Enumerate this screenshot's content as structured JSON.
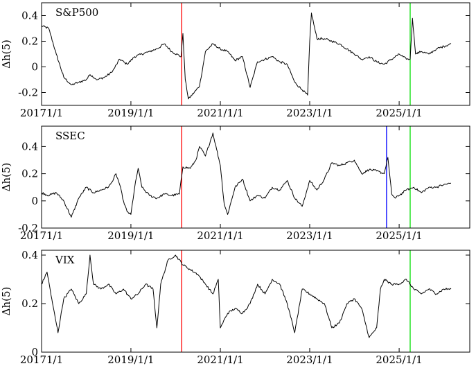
{
  "chart_data": [
    {
      "type": "line",
      "title": "S&P500",
      "ylabel": "Δh(5)",
      "xlabel": "",
      "xlim": [
        "2017-01-01",
        "2026-08-01"
      ],
      "ylim": [
        -0.3,
        0.5
      ],
      "yticks": [
        -0.2,
        0,
        0.2,
        0.4
      ],
      "ytick_labels": [
        "-0.2",
        "0",
        "0.2",
        "0.4"
      ],
      "xticks": [
        "2017-01-01",
        "2019-01-01",
        "2021-01-01",
        "2023-01-01",
        "2025-01-01"
      ],
      "xtick_labels": [
        "20171/1",
        "2019/1/1",
        "2021/1/1",
        "2023/1/1",
        "2025/1/1"
      ],
      "vlines": [
        {
          "date": "2020-02-20",
          "color": "#ff0000"
        },
        {
          "date": "2025-04-01",
          "color": "#00dd00"
        }
      ],
      "series": [
        {
          "x": [
            "2017-01-01",
            "2017-03-01",
            "2017-05-01",
            "2017-07-01",
            "2017-09-01",
            "2017-11-01",
            "2018-01-01",
            "2018-02-01",
            "2018-04-01",
            "2018-06-01",
            "2018-08-01",
            "2018-10-01",
            "2018-12-01",
            "2019-02-01",
            "2019-04-01",
            "2019-06-01",
            "2019-08-01",
            "2019-10-01",
            "2019-12-01",
            "2020-02-15",
            "2020-03-01",
            "2020-03-20",
            "2020-04-15",
            "2020-06-01",
            "2020-07-15",
            "2020-09-01",
            "2020-11-01",
            "2021-01-01",
            "2021-03-01",
            "2021-05-01",
            "2021-07-01",
            "2021-09-01",
            "2021-11-01",
            "2022-01-01",
            "2022-03-01",
            "2022-05-01",
            "2022-07-01",
            "2022-09-01",
            "2022-11-01",
            "2022-12-15",
            "2023-01-01",
            "2023-01-15",
            "2023-03-01",
            "2023-05-01",
            "2023-07-01",
            "2023-09-01",
            "2023-11-01",
            "2024-01-01",
            "2024-03-01",
            "2024-05-01",
            "2024-07-01",
            "2024-09-01",
            "2024-11-01",
            "2025-01-01",
            "2025-03-01",
            "2025-04-01",
            "2025-04-20",
            "2025-05-15",
            "2025-07-01",
            "2025-09-01",
            "2025-11-01",
            "2026-01-01",
            "2026-03-01"
          ],
          "values": [
            0.32,
            0.3,
            0.1,
            -0.08,
            -0.14,
            -0.12,
            -0.1,
            -0.06,
            -0.1,
            -0.08,
            -0.04,
            0.06,
            0.02,
            0.08,
            0.1,
            0.12,
            0.14,
            0.18,
            0.12,
            0.08,
            0.26,
            -0.1,
            -0.25,
            -0.2,
            -0.15,
            0.12,
            0.18,
            0.14,
            0.12,
            0.05,
            0.08,
            -0.16,
            0.04,
            0.06,
            0.08,
            0.04,
            0.02,
            -0.12,
            -0.18,
            -0.22,
            0.2,
            0.42,
            0.22,
            0.22,
            0.2,
            0.18,
            0.14,
            0.1,
            0.06,
            0.08,
            0.04,
            0.02,
            0.06,
            0.1,
            0.06,
            0.06,
            0.38,
            0.1,
            0.12,
            0.1,
            0.14,
            0.16,
            0.18
          ]
        }
      ]
    },
    {
      "type": "line",
      "title": "SSEC",
      "ylabel": "Δh(5)",
      "xlabel": "",
      "xlim": [
        "2017-01-01",
        "2026-08-01"
      ],
      "ylim": [
        -0.2,
        0.55
      ],
      "yticks": [
        -0.2,
        0,
        0.2,
        0.4
      ],
      "ytick_labels": [
        "-0.2",
        "0",
        "0.2",
        "0.4"
      ],
      "xticks": [
        "2017-01-01",
        "2019-01-01",
        "2021-01-01",
        "2023-01-01",
        "2025-01-01"
      ],
      "xtick_labels": [
        "20171/1",
        "2019/1/1",
        "2021/1/1",
        "2023/1/1",
        "2025/1/1"
      ],
      "vlines": [
        {
          "date": "2020-02-20",
          "color": "#ff0000"
        },
        {
          "date": "2024-09-20",
          "color": "#0000ff"
        },
        {
          "date": "2025-04-01",
          "color": "#00dd00"
        }
      ],
      "series": [
        {
          "x": [
            "2017-01-01",
            "2017-03-01",
            "2017-05-01",
            "2017-07-01",
            "2017-09-01",
            "2017-11-01",
            "2018-01-01",
            "2018-03-01",
            "2018-05-01",
            "2018-07-01",
            "2018-08-01",
            "2018-09-01",
            "2018-10-01",
            "2018-11-01",
            "2018-12-01",
            "2019-01-01",
            "2019-02-01",
            "2019-03-01",
            "2019-04-01",
            "2019-06-01",
            "2019-08-01",
            "2019-10-01",
            "2019-12-01",
            "2020-02-01",
            "2020-03-01",
            "2020-05-01",
            "2020-06-15",
            "2020-07-15",
            "2020-09-01",
            "2020-11-01",
            "2020-12-01",
            "2021-01-01",
            "2021-02-01",
            "2021-03-01",
            "2021-05-01",
            "2021-07-01",
            "2021-09-01",
            "2021-11-01",
            "2022-01-01",
            "2022-03-01",
            "2022-05-01",
            "2022-07-01",
            "2022-09-01",
            "2022-11-01",
            "2023-01-01",
            "2023-03-01",
            "2023-05-01",
            "2023-07-01",
            "2023-09-01",
            "2023-11-01",
            "2024-01-01",
            "2024-03-01",
            "2024-05-01",
            "2024-07-01",
            "2024-09-01",
            "2024-10-01",
            "2024-11-01",
            "2024-12-01",
            "2025-01-01",
            "2025-03-01",
            "2025-05-01",
            "2025-07-01",
            "2025-09-01",
            "2025-11-01",
            "2026-01-01",
            "2026-03-01"
          ],
          "values": [
            0.06,
            0.04,
            0.06,
            0.0,
            -0.12,
            0.02,
            0.1,
            0.06,
            0.08,
            0.1,
            0.14,
            0.2,
            0.12,
            0.0,
            -0.08,
            -0.1,
            0.1,
            0.24,
            0.1,
            0.04,
            0.02,
            0.05,
            0.04,
            0.05,
            0.25,
            0.24,
            0.3,
            0.4,
            0.33,
            0.5,
            0.38,
            0.26,
            -0.02,
            -0.1,
            0.1,
            0.16,
            0.0,
            0.04,
            0.02,
            0.1,
            0.08,
            0.15,
            0.02,
            -0.04,
            0.15,
            0.08,
            0.16,
            0.28,
            0.26,
            0.28,
            0.3,
            0.2,
            0.23,
            0.22,
            0.2,
            0.32,
            0.05,
            0.02,
            0.04,
            0.08,
            0.1,
            0.06,
            0.1,
            0.1,
            0.12,
            0.13
          ]
        }
      ]
    },
    {
      "type": "line",
      "title": "VIX",
      "ylabel": "Δh(5)",
      "xlabel": "",
      "xlim": [
        "2017-01-01",
        "2026-08-01"
      ],
      "ylim": [
        0,
        0.42
      ],
      "yticks": [
        0,
        0.2,
        0.4
      ],
      "ytick_labels": [
        "0",
        "0.2",
        "0.4"
      ],
      "xticks": [
        "2017-01-01",
        "2019-01-01",
        "2021-01-01",
        "2023-01-01",
        "2025-01-01"
      ],
      "xtick_labels": [
        "20171/1",
        "2019/1/1",
        "2021/1/1",
        "2023/1/1",
        "2025/1/1"
      ],
      "vlines": [
        {
          "date": "2020-02-20",
          "color": "#ff0000"
        },
        {
          "date": "2025-04-01",
          "color": "#00dd00"
        }
      ],
      "series": [
        {
          "x": [
            "2017-01-01",
            "2017-02-15",
            "2017-04-01",
            "2017-05-15",
            "2017-07-01",
            "2017-09-01",
            "2017-11-01",
            "2018-01-01",
            "2018-02-01",
            "2018-03-01",
            "2018-05-01",
            "2018-07-01",
            "2018-09-01",
            "2018-11-01",
            "2019-01-01",
            "2019-03-01",
            "2019-05-01",
            "2019-07-01",
            "2019-08-01",
            "2019-09-01",
            "2019-11-01",
            "2020-01-01",
            "2020-03-01",
            "2020-05-01",
            "2020-07-01",
            "2020-09-01",
            "2020-11-01",
            "2020-12-15",
            "2021-01-01",
            "2021-03-01",
            "2021-05-01",
            "2021-07-01",
            "2021-09-01",
            "2021-11-01",
            "2022-01-01",
            "2022-03-01",
            "2022-05-01",
            "2022-07-01",
            "2022-09-01",
            "2022-11-01",
            "2023-01-01",
            "2023-03-01",
            "2023-05-01",
            "2023-07-01",
            "2023-09-01",
            "2023-11-01",
            "2024-01-01",
            "2024-03-01",
            "2024-05-01",
            "2024-07-01",
            "2024-08-01",
            "2024-09-01",
            "2024-11-01",
            "2025-01-01",
            "2025-03-01",
            "2025-05-01",
            "2025-07-01",
            "2025-09-01",
            "2025-11-01",
            "2026-01-01",
            "2026-03-01"
          ],
          "values": [
            0.28,
            0.33,
            0.2,
            0.08,
            0.22,
            0.26,
            0.2,
            0.24,
            0.4,
            0.28,
            0.26,
            0.28,
            0.24,
            0.26,
            0.22,
            0.24,
            0.28,
            0.26,
            0.1,
            0.28,
            0.38,
            0.4,
            0.36,
            0.34,
            0.32,
            0.28,
            0.24,
            0.3,
            0.1,
            0.16,
            0.18,
            0.16,
            0.2,
            0.28,
            0.24,
            0.3,
            0.28,
            0.2,
            0.08,
            0.26,
            0.24,
            0.22,
            0.2,
            0.1,
            0.12,
            0.2,
            0.22,
            0.18,
            0.06,
            0.1,
            0.26,
            0.3,
            0.28,
            0.28,
            0.3,
            0.26,
            0.24,
            0.26,
            0.24,
            0.26,
            0.26
          ]
        }
      ]
    }
  ]
}
